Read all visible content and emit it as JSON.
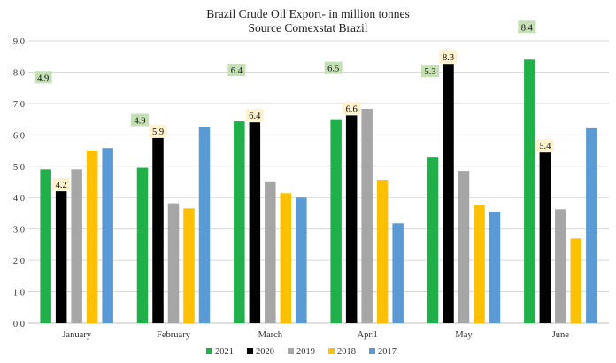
{
  "chart_data": {
    "type": "bar",
    "title": "Brazil Crude Oil Export- in million tonnes",
    "subtitle": "Source Comexstat Brazil",
    "xlabel": "",
    "ylabel": "",
    "ylim": [
      0,
      9
    ],
    "yticks": [
      0,
      1,
      2,
      3,
      4,
      5,
      6,
      7,
      8,
      9
    ],
    "ytick_labels": [
      "0.0",
      "1.0",
      "2.0",
      "3.0",
      "4.0",
      "5.0",
      "6.0",
      "7.0",
      "8.0",
      "9.0"
    ],
    "grid": true,
    "legend_position": "bottom-center",
    "categories": [
      "January",
      "February",
      "March",
      "April",
      "May",
      "June"
    ],
    "series": [
      {
        "name": "2021",
        "color": "#1fb04a",
        "values": [
          4.9,
          4.95,
          6.43,
          6.5,
          5.3,
          8.4
        ]
      },
      {
        "name": "2020",
        "color": "#000000",
        "values": [
          4.2,
          5.9,
          6.4,
          6.62,
          8.26,
          5.44
        ]
      },
      {
        "name": "2019",
        "color": "#a6a6a6",
        "values": [
          4.9,
          3.82,
          4.52,
          6.83,
          4.85,
          3.63
        ]
      },
      {
        "name": "2018",
        "color": "#ffc000",
        "values": [
          5.5,
          3.66,
          4.14,
          4.57,
          3.78,
          2.7
        ]
      },
      {
        "name": "2017",
        "color": "#5b9bd5",
        "values": [
          5.58,
          6.25,
          4.0,
          3.18,
          3.54,
          6.21
        ]
      }
    ],
    "annotations": [
      {
        "series": "2021",
        "category": "January",
        "text": "4.9",
        "bg": "#c5e0b4"
      },
      {
        "series": "2021",
        "category": "February",
        "text": "4.9",
        "bg": "#c5e0b4"
      },
      {
        "series": "2021",
        "category": "March",
        "text": "6.4",
        "bg": "#c5e0b4"
      },
      {
        "series": "2021",
        "category": "April",
        "text": "6.5",
        "bg": "#c5e0b4"
      },
      {
        "series": "2021",
        "category": "May",
        "text": "5.3",
        "bg": "#c5e0b4"
      },
      {
        "series": "2021",
        "category": "June",
        "text": "8.4",
        "bg": "#c5e0b4"
      },
      {
        "series": "2020",
        "category": "January",
        "text": "4.2",
        "bg": "#fff2cc"
      },
      {
        "series": "2020",
        "category": "February",
        "text": "5.9",
        "bg": "#fff2cc"
      },
      {
        "series": "2020",
        "category": "March",
        "text": "6.4",
        "bg": "#fff2cc"
      },
      {
        "series": "2020",
        "category": "April",
        "text": "6.6",
        "bg": "#fff2cc"
      },
      {
        "series": "2020",
        "category": "May",
        "text": "8.3",
        "bg": "#fff2cc"
      },
      {
        "series": "2020",
        "category": "June",
        "text": "5.4",
        "bg": "#fff2cc"
      }
    ]
  }
}
